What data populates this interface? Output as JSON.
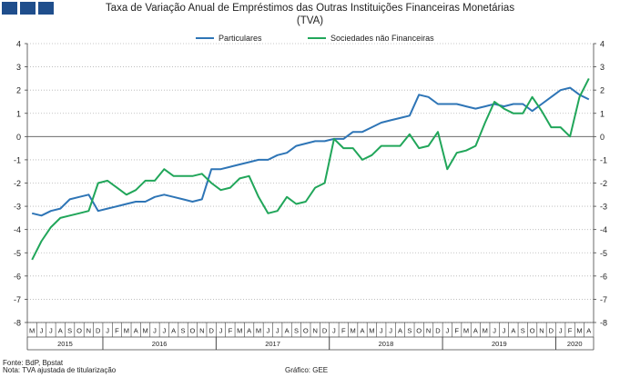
{
  "header": {
    "title_line1": "Taxa de Variação Anual de Empréstimos das Outras Instituições Financeiras Monetárias",
    "title_line2": "(TVA)"
  },
  "footer": {
    "source": "Fonte: BdP, Bpstat",
    "note": "Nota: TVA ajustada de titularização",
    "credit": "Gráfico: GEE"
  },
  "chart_data": {
    "type": "line",
    "ylim": [
      -8,
      4
    ],
    "yticks": [
      -8,
      -7,
      -6,
      -5,
      -4,
      -3,
      -2,
      -1,
      0,
      1,
      2,
      3,
      4
    ],
    "grid": "horizontal dotted",
    "legend_position": "top-center",
    "month_labels": [
      "M",
      "J",
      "J",
      "A",
      "S",
      "O",
      "N",
      "D",
      "J",
      "F",
      "M",
      "A",
      "M",
      "J",
      "J",
      "A",
      "S",
      "O",
      "N",
      "D",
      "J",
      "F",
      "M",
      "A",
      "M",
      "J",
      "J",
      "A",
      "S",
      "O",
      "N",
      "D",
      "J",
      "F",
      "M",
      "A",
      "M",
      "J",
      "J",
      "A",
      "S",
      "O",
      "N",
      "D",
      "J",
      "F",
      "M",
      "A",
      "M",
      "J",
      "J",
      "A",
      "S",
      "O",
      "N",
      "D",
      "J",
      "F",
      "M",
      "A"
    ],
    "years": [
      {
        "label": "2015",
        "start": 0,
        "count": 8
      },
      {
        "label": "2016",
        "start": 8,
        "count": 12
      },
      {
        "label": "2017",
        "start": 20,
        "count": 12
      },
      {
        "label": "2018",
        "start": 32,
        "count": 12
      },
      {
        "label": "2019",
        "start": 44,
        "count": 12
      },
      {
        "label": "2020",
        "start": 56,
        "count": 4
      }
    ],
    "series": [
      {
        "name": "Particulares",
        "color": "#2e75b6",
        "values": [
          -3.3,
          -3.4,
          -3.2,
          -3.1,
          -2.7,
          -2.6,
          -2.5,
          -3.2,
          -3.1,
          -3.0,
          -2.9,
          -2.8,
          -2.8,
          -2.6,
          -2.5,
          -2.6,
          -2.7,
          -2.8,
          -2.7,
          -1.4,
          -1.4,
          -1.3,
          -1.2,
          -1.1,
          -1.0,
          -1.0,
          -0.8,
          -0.7,
          -0.4,
          -0.3,
          -0.2,
          -0.2,
          -0.1,
          -0.1,
          0.2,
          0.2,
          0.4,
          0.6,
          0.7,
          0.8,
          0.9,
          1.8,
          1.7,
          1.4,
          1.4,
          1.4,
          1.3,
          1.2,
          1.3,
          1.4,
          1.3,
          1.4,
          1.4,
          1.1,
          1.4,
          1.7,
          2.0,
          2.1,
          1.8,
          1.6
        ]
      },
      {
        "name": "Sociedades não Financeiras",
        "color": "#21a65a",
        "values": [
          -5.3,
          -4.5,
          -3.9,
          -3.5,
          -3.4,
          -3.3,
          -3.2,
          -2.0,
          -1.9,
          -2.2,
          -2.5,
          -2.3,
          -1.9,
          -1.9,
          -1.4,
          -1.7,
          -1.7,
          -1.7,
          -1.6,
          -2.0,
          -2.3,
          -2.2,
          -1.8,
          -1.7,
          -2.6,
          -3.3,
          -3.2,
          -2.6,
          -2.9,
          -2.8,
          -2.2,
          -2.0,
          -0.1,
          -0.5,
          -0.5,
          -1.0,
          -0.8,
          -0.4,
          -0.4,
          -0.4,
          0.1,
          -0.5,
          -0.4,
          0.2,
          -1.4,
          -0.7,
          -0.6,
          -0.4,
          0.6,
          1.5,
          1.2,
          1.0,
          1.0,
          1.7,
          1.1,
          0.4,
          0.4,
          0.0,
          1.7,
          2.5
        ]
      }
    ]
  }
}
